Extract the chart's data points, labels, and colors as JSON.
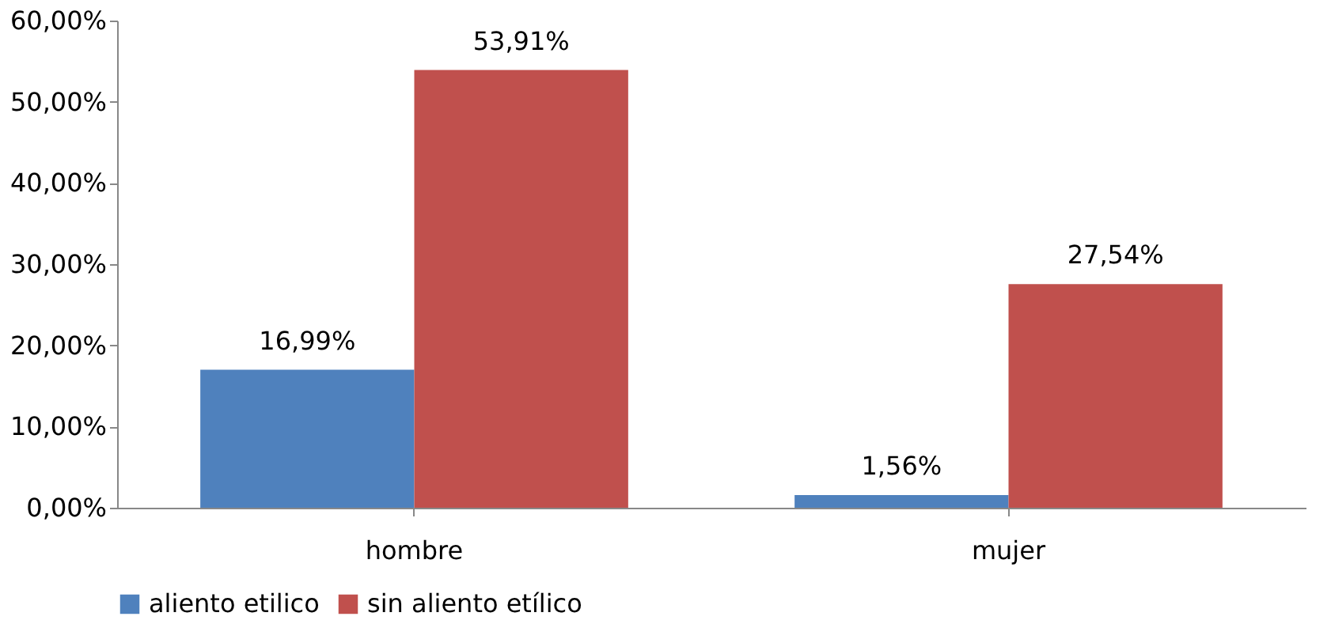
{
  "chart_data": {
    "type": "bar",
    "categories": [
      "hombre",
      "mujer"
    ],
    "series": [
      {
        "name": "aliento etilico",
        "color": "#4f81bd",
        "values": [
          16.99,
          1.56
        ],
        "value_labels": [
          "16,99%",
          "1,56%"
        ]
      },
      {
        "name": "sin aliento etílico",
        "color": "#c0504d",
        "values": [
          53.91,
          27.54
        ],
        "value_labels": [
          "53,91%",
          "27,54%"
        ]
      }
    ],
    "ylim": [
      0,
      60
    ],
    "yticks": [
      {
        "value": 0,
        "label": "0,00%"
      },
      {
        "value": 10,
        "label": "10,00%"
      },
      {
        "value": 20,
        "label": "20,00%"
      },
      {
        "value": 30,
        "label": "30,00%"
      },
      {
        "value": 40,
        "label": "40,00%"
      },
      {
        "value": 50,
        "label": "50,00%"
      },
      {
        "value": 60,
        "label": "60,00%"
      }
    ],
    "grid": false,
    "legend": "bottom"
  }
}
